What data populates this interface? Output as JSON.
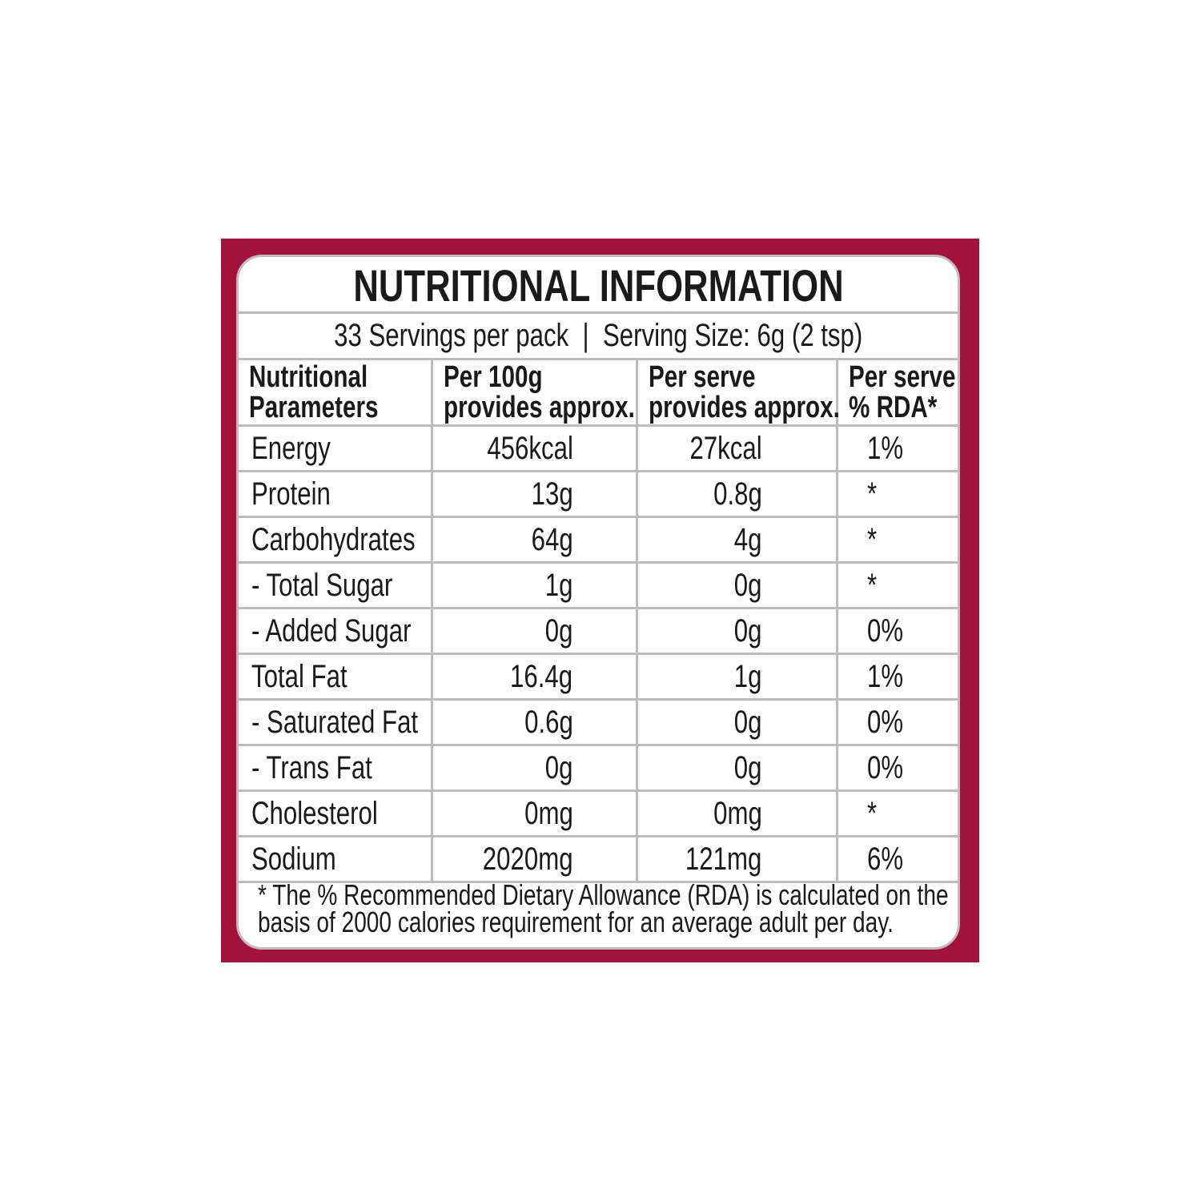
{
  "header": {
    "title": "NUTRITIONAL INFORMATION",
    "servings": "33 Servings per pack",
    "serving_size": "Serving Size: 6g (2 tsp)"
  },
  "table": {
    "columns": [
      [
        "Nutritional",
        "Parameters"
      ],
      [
        "Per 100g",
        "provides approx."
      ],
      [
        "Per serve",
        "provides approx."
      ],
      [
        "Per serve",
        "% RDA*"
      ]
    ],
    "rows": [
      [
        "Energy",
        "456kcal",
        "27kcal",
        "1%"
      ],
      [
        "Protein",
        "13g",
        "0.8g",
        "*"
      ],
      [
        "Carbohydrates",
        "64g",
        "4g",
        "*"
      ],
      [
        "- Total Sugar",
        "1g",
        "0g",
        "*"
      ],
      [
        "- Added Sugar",
        "0g",
        "0g",
        "0%"
      ],
      [
        "Total Fat",
        "16.4g",
        "1g",
        "1%"
      ],
      [
        "- Saturated Fat",
        "0.6g",
        "0g",
        "0%"
      ],
      [
        "- Trans Fat",
        "0g",
        "0g",
        "0%"
      ],
      [
        "Cholesterol",
        "0mg",
        "0mg",
        "*"
      ],
      [
        "Sodium",
        "2020mg",
        "121mg",
        "6%"
      ]
    ]
  },
  "footnote": [
    "* The % Recommended Dietary Allowance (RDA) is calculated on the",
    "basis of 2000 calories requirement for an average adult per day."
  ]
}
